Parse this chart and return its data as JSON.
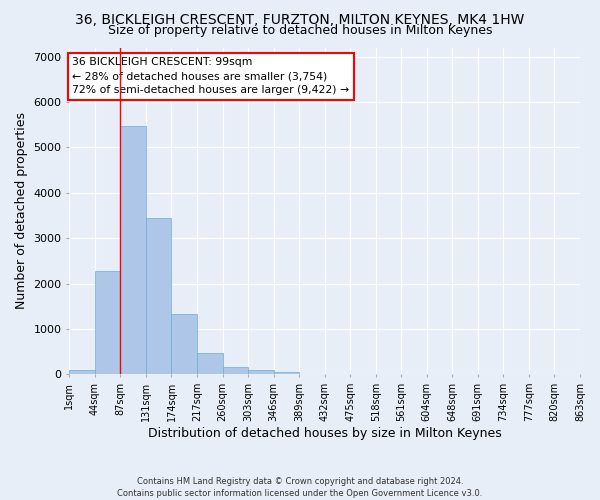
{
  "title_line1": "36, BICKLEIGH CRESCENT, FURZTON, MILTON KEYNES, MK4 1HW",
  "title_line2": "Size of property relative to detached houses in Milton Keynes",
  "xlabel": "Distribution of detached houses by size in Milton Keynes",
  "ylabel": "Number of detached properties",
  "footer_line1": "Contains HM Land Registry data © Crown copyright and database right 2024.",
  "footer_line2": "Contains public sector information licensed under the Open Government Licence v3.0.",
  "bin_labels": [
    "1sqm",
    "44sqm",
    "87sqm",
    "131sqm",
    "174sqm",
    "217sqm",
    "260sqm",
    "303sqm",
    "346sqm",
    "389sqm",
    "432sqm",
    "475sqm",
    "518sqm",
    "561sqm",
    "604sqm",
    "648sqm",
    "691sqm",
    "734sqm",
    "777sqm",
    "820sqm",
    "863sqm"
  ],
  "bar_values": [
    90,
    2270,
    5480,
    3450,
    1320,
    470,
    160,
    85,
    50,
    0,
    0,
    0,
    0,
    0,
    0,
    0,
    0,
    0,
    0,
    0
  ],
  "bar_color": "#aec6e8",
  "bar_edge_color": "#6baed6",
  "vline_x_index": 2,
  "vline_color": "red",
  "annotation_text": "36 BICKLEIGH CRESCENT: 99sqm\n← 28% of detached houses are smaller (3,754)\n72% of semi-detached houses are larger (9,422) →",
  "ylim": [
    0,
    7200
  ],
  "yticks": [
    0,
    1000,
    2000,
    3000,
    4000,
    5000,
    6000,
    7000
  ],
  "bg_color": "#e8eef7",
  "plot_bg_color": "#e8eef7",
  "grid_color": "#ffffff",
  "title_fontsize": 10,
  "subtitle_fontsize": 9,
  "axis_label_fontsize": 9
}
